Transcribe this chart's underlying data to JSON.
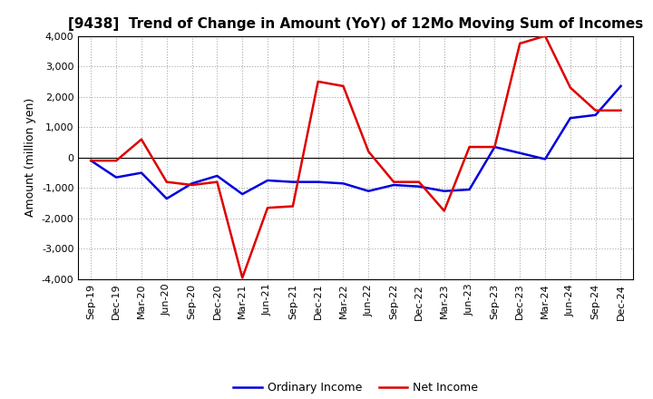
{
  "title": "[9438]  Trend of Change in Amount (YoY) of 12Mo Moving Sum of Incomes",
  "ylabel": "Amount (million yen)",
  "xlabels": [
    "Sep-19",
    "Dec-19",
    "Mar-20",
    "Jun-20",
    "Sep-20",
    "Dec-20",
    "Mar-21",
    "Jun-21",
    "Sep-21",
    "Dec-21",
    "Mar-22",
    "Jun-22",
    "Sep-22",
    "Dec-22",
    "Mar-23",
    "Jun-23",
    "Sep-23",
    "Dec-23",
    "Mar-24",
    "Jun-24",
    "Sep-24",
    "Dec-24"
  ],
  "ordinary_income": [
    -100,
    -650,
    -500,
    -1350,
    -850,
    -600,
    -1200,
    -750,
    -800,
    -800,
    -850,
    -1100,
    -900,
    -950,
    -1100,
    -1050,
    350,
    150,
    -50,
    1300,
    1400,
    2350
  ],
  "net_income": [
    -100,
    -100,
    600,
    -800,
    -900,
    -800,
    -3950,
    -1650,
    -1600,
    2500,
    2350,
    200,
    -800,
    -800,
    -1750,
    350,
    350,
    3750,
    4000,
    2300,
    1550,
    1550
  ],
  "ordinary_income_color": "#0000dd",
  "net_income_color": "#dd0000",
  "ylim": [
    -4000,
    4000
  ],
  "yticks": [
    -4000,
    -3000,
    -2000,
    -1000,
    0,
    1000,
    2000,
    3000,
    4000
  ],
  "legend_ordinary": "Ordinary Income",
  "legend_net": "Net Income",
  "background_color": "#ffffff",
  "grid_color": "#aaaaaa",
  "title_fontsize": 11,
  "ylabel_fontsize": 9,
  "tick_fontsize": 8
}
